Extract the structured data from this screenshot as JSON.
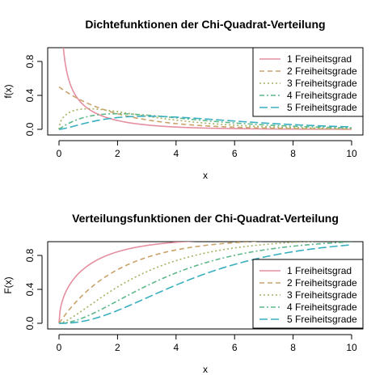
{
  "chart_data": [
    {
      "type": "line",
      "title": "Dichtefunktionen der Chi-Quadrat-Verteilung",
      "xlabel": "x",
      "ylabel": "f(x)",
      "xlim": [
        0,
        10
      ],
      "ylim": [
        0,
        1.0
      ],
      "xticks": [
        "0",
        "2",
        "4",
        "6",
        "8",
        "10"
      ],
      "yticks": [
        "0.0",
        "0.4",
        "0.8"
      ],
      "legend_position": "top-right",
      "grid": false,
      "series": [
        {
          "name": "1 Freiheitsgrad",
          "df": 1,
          "color": "#E58FA0",
          "dash": "solid",
          "x": [
            0.05,
            0.1,
            0.25,
            0.5,
            1,
            1.5,
            2,
            3,
            4,
            6,
            8,
            10
          ],
          "values": [
            1.73,
            1.2,
            0.7,
            0.44,
            0.24,
            0.15,
            0.1,
            0.05,
            0.027,
            0.008,
            0.003,
            0.001
          ]
        },
        {
          "name": "2 Freiheitsgrade",
          "df": 2,
          "color": "#C9A26B",
          "dash": "6,4",
          "x": [
            0,
            1,
            2,
            3,
            4,
            6,
            8,
            10
          ],
          "values": [
            0.5,
            0.3,
            0.18,
            0.11,
            0.07,
            0.025,
            0.009,
            0.003
          ]
        },
        {
          "name": "3 Freiheitsgrade",
          "df": 3,
          "color": "#A8B060",
          "dash": "2,3",
          "x": [
            0,
            0.5,
            1,
            2,
            3,
            4,
            6,
            8,
            10
          ],
          "values": [
            0,
            0.22,
            0.24,
            0.21,
            0.15,
            0.11,
            0.05,
            0.02,
            0.008
          ]
        },
        {
          "name": "4 Freiheitsgrade",
          "df": 4,
          "color": "#5DB88A",
          "dash": "6,3,2,3",
          "x": [
            0,
            1,
            2,
            3,
            4,
            6,
            8,
            10
          ],
          "values": [
            0,
            0.15,
            0.18,
            0.17,
            0.14,
            0.075,
            0.037,
            0.017
          ]
        },
        {
          "name": "5 Freiheitsgrade",
          "df": 5,
          "color": "#3AAFC0",
          "dash": "10,4",
          "x": [
            0,
            1,
            2,
            3,
            4,
            6,
            8,
            10
          ],
          "values": [
            0,
            0.08,
            0.14,
            0.154,
            0.144,
            0.097,
            0.055,
            0.028
          ]
        }
      ]
    },
    {
      "type": "line",
      "title": "Verteilungsfunktionen der Chi-Quadrat-Verteilung",
      "xlabel": "x",
      "ylabel": "F(x)",
      "xlim": [
        0,
        10
      ],
      "ylim": [
        0,
        1.0
      ],
      "xticks": [
        "0",
        "2",
        "4",
        "6",
        "8",
        "10"
      ],
      "yticks": [
        "0.0",
        "0.4",
        "0.8"
      ],
      "legend_position": "bottom-right",
      "grid": false,
      "series": [
        {
          "name": "1 Freiheitsgrad",
          "df": 1,
          "color": "#E58FA0",
          "dash": "solid",
          "x": [
            0,
            1,
            2,
            4,
            6,
            8,
            10
          ],
          "values": [
            0,
            0.68,
            0.84,
            0.95,
            0.986,
            0.995,
            0.998
          ]
        },
        {
          "name": "2 Freiheitsgrade",
          "df": 2,
          "color": "#C9A26B",
          "dash": "6,4",
          "x": [
            0,
            1,
            2,
            4,
            6,
            8,
            10
          ],
          "values": [
            0,
            0.39,
            0.63,
            0.86,
            0.95,
            0.98,
            0.99
          ]
        },
        {
          "name": "3 Freiheitsgrade",
          "df": 3,
          "color": "#A8B060",
          "dash": "2,3",
          "x": [
            0,
            1,
            2,
            4,
            6,
            8,
            10
          ],
          "values": [
            0,
            0.2,
            0.43,
            0.74,
            0.89,
            0.95,
            0.98
          ]
        },
        {
          "name": "4 Freiheitsgrade",
          "df": 4,
          "color": "#5DB88A",
          "dash": "6,3,2,3",
          "x": [
            0,
            1,
            2,
            4,
            6,
            8,
            10
          ],
          "values": [
            0,
            0.09,
            0.26,
            0.59,
            0.8,
            0.91,
            0.96
          ]
        },
        {
          "name": "5 Freiheitsgrade",
          "df": 5,
          "color": "#3AAFC0",
          "dash": "10,4",
          "x": [
            0,
            1,
            2,
            4,
            6,
            8,
            10
          ],
          "values": [
            0,
            0.04,
            0.15,
            0.45,
            0.71,
            0.84,
            0.92
          ]
        }
      ]
    }
  ]
}
